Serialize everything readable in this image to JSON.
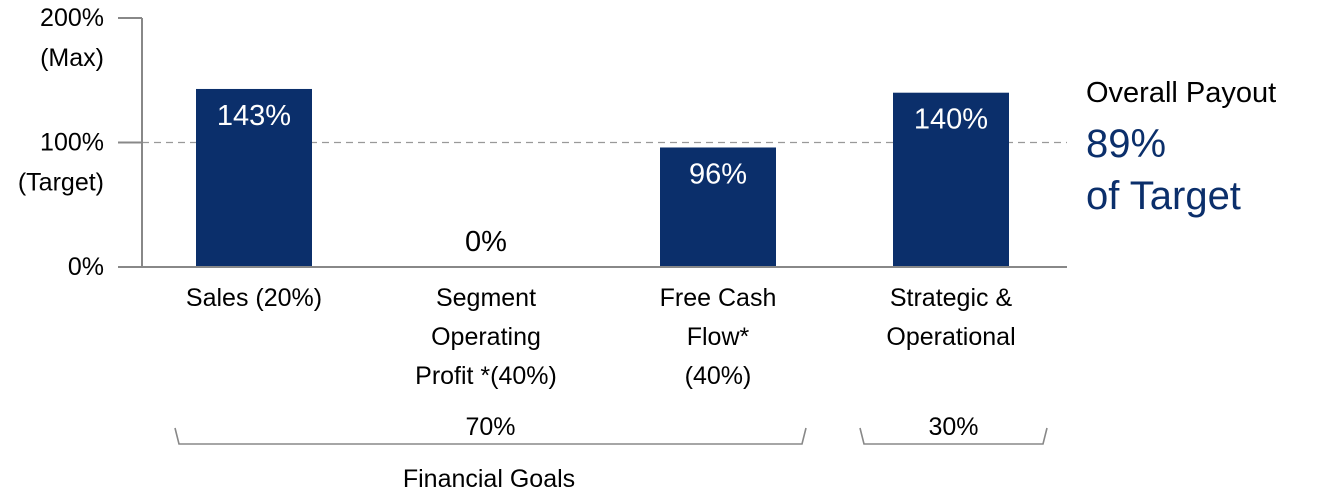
{
  "chart_data": {
    "type": "bar",
    "categories": [
      [
        "Sales (20%)"
      ],
      [
        "Segment",
        "Operating",
        "Profit *(40%)"
      ],
      [
        "Free Cash",
        "Flow*",
        "(40%)"
      ],
      [
        "Strategic &",
        "Operational"
      ]
    ],
    "values": [
      143,
      0,
      96,
      140
    ],
    "value_labels": [
      "143%",
      "0%",
      "96%",
      "140%"
    ],
    "ylim": [
      0,
      200
    ],
    "y_ticks": [
      {
        "value": 200,
        "lines": [
          "200%",
          "(Max)"
        ]
      },
      {
        "value": 100,
        "lines": [
          "100%",
          "(Target)"
        ]
      },
      {
        "value": 0,
        "lines": [
          "0%"
        ]
      }
    ],
    "reference_line": {
      "value": 100,
      "style": "dashed"
    },
    "groups": [
      {
        "label": "70%",
        "caption": "Financial Goals",
        "from": 0,
        "to": 2
      },
      {
        "label": "30%",
        "caption": "",
        "from": 3,
        "to": 3
      }
    ],
    "annotation": {
      "title": "Overall Payout",
      "lines": [
        "89%",
        "of Target"
      ]
    },
    "colors": {
      "bar": "#0B2F6B",
      "accent": "#0B2F6B",
      "axis": "#888888",
      "ref_line": "#999999"
    }
  }
}
